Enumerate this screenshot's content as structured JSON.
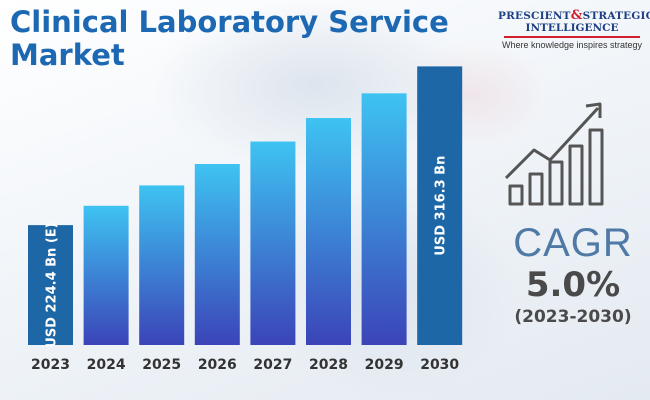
{
  "title": "Clinical Laboratory Service Market",
  "logo": {
    "name_part1": "PRESCIENT",
    "amp": "&",
    "name_part2": "STRATEGIC",
    "name_line2": "INTELLIGENCE",
    "tagline": "Where knowledge inspires strategy"
  },
  "cagr": {
    "label": "CAGR",
    "value": "5.0%",
    "period": "(2023-2030)"
  },
  "colors": {
    "title": "#1d68b3",
    "bar_top": "#3ec3f2",
    "bar_bottom": "#3b44b8",
    "highlight_bar": "#1e67a6",
    "axis_text": "#333333",
    "icon": "#555555"
  },
  "chart_data": {
    "type": "bar",
    "title": "Clinical Laboratory Service Market",
    "categories": [
      "2023",
      "2024",
      "2025",
      "2026",
      "2027",
      "2028",
      "2029",
      "2030"
    ],
    "values": [
      224.4,
      235.6,
      247.4,
      259.8,
      272.8,
      286.4,
      300.7,
      316.3
    ],
    "unit": "USD Bn",
    "ylim": [
      155,
      320
    ],
    "highlighted": [
      "2023",
      "2030"
    ],
    "data_labels": {
      "2023": "USD 224.4 Bn (E)",
      "2030": "USD 316.3 Bn"
    }
  }
}
